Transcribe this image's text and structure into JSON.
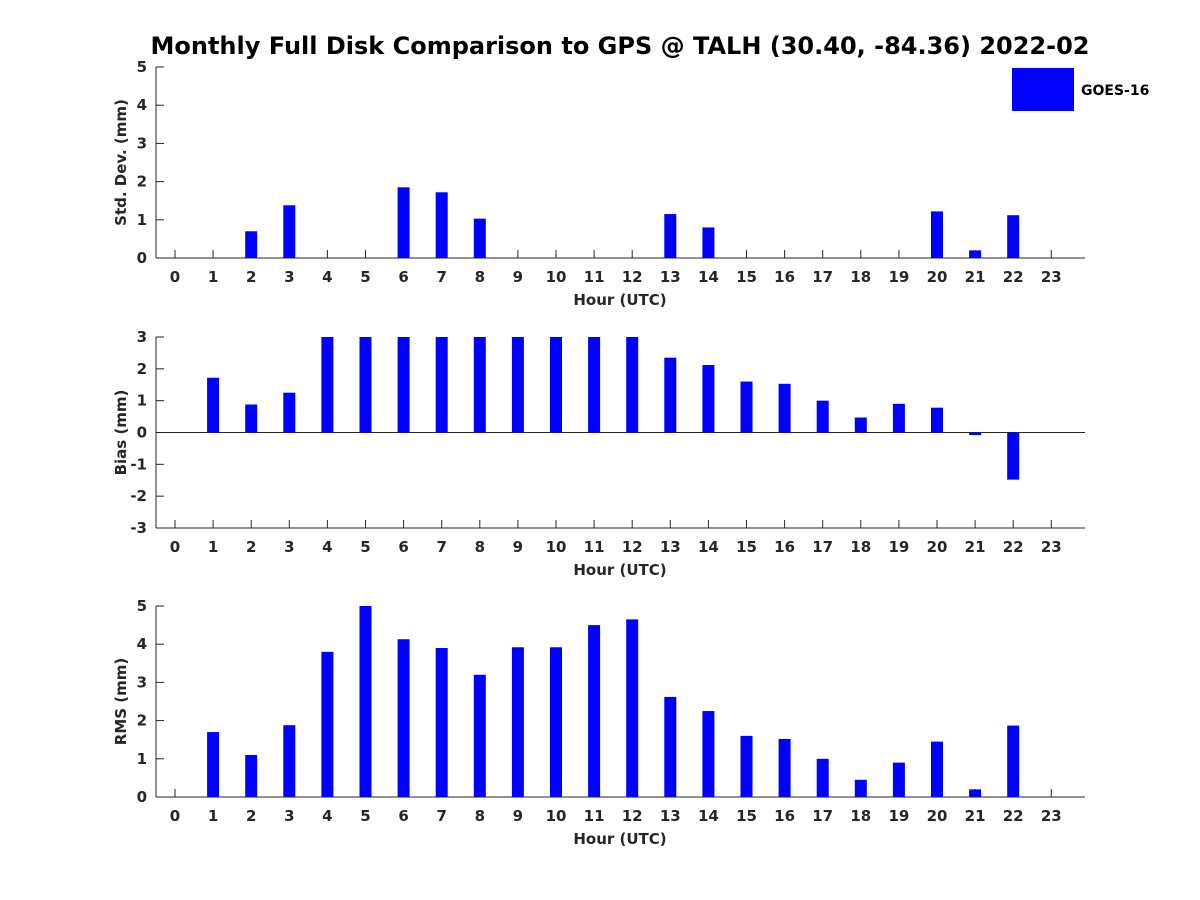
{
  "chart_data": {
    "title": "Monthly Full Disk Comparison to GPS @ TALH (30.40, -84.36) 2022-02",
    "legend": {
      "label": "GOES-16",
      "color": "#0000ff",
      "placement": "top-right"
    },
    "bar_color": "#0000ff",
    "panels": [
      {
        "type": "bar",
        "ylabel": "Std. Dev. (mm)",
        "xlabel": "Hour (UTC)",
        "ylim": [
          0,
          5
        ],
        "yticks": [
          "0",
          "1",
          "2",
          "3",
          "4",
          "5"
        ],
        "categories": [
          "0",
          "1",
          "2",
          "3",
          "4",
          "5",
          "6",
          "7",
          "8",
          "9",
          "10",
          "11",
          "12",
          "13",
          "14",
          "15",
          "16",
          "17",
          "18",
          "19",
          "20",
          "21",
          "22",
          "23"
        ],
        "values": [
          null,
          null,
          0.7,
          1.38,
          null,
          null,
          1.85,
          1.72,
          1.03,
          null,
          null,
          null,
          null,
          1.15,
          0.8,
          null,
          null,
          null,
          null,
          null,
          1.22,
          0.2,
          1.12,
          null
        ]
      },
      {
        "type": "bar",
        "ylabel": "Bias (mm)",
        "xlabel": "Hour (UTC)",
        "ylim": [
          -3,
          3
        ],
        "yticks": [
          "-3",
          "-2",
          "-1",
          "0",
          "1",
          "2",
          "3"
        ],
        "zero_line": true,
        "categories": [
          "0",
          "1",
          "2",
          "3",
          "4",
          "5",
          "6",
          "7",
          "8",
          "9",
          "10",
          "11",
          "12",
          "13",
          "14",
          "15",
          "16",
          "17",
          "18",
          "19",
          "20",
          "21",
          "22",
          "23"
        ],
        "values": [
          null,
          1.72,
          0.88,
          1.25,
          3.0,
          3.0,
          3.0,
          3.0,
          3.0,
          3.0,
          3.0,
          3.0,
          3.0,
          2.35,
          2.12,
          1.6,
          1.53,
          1.0,
          0.47,
          0.9,
          0.78,
          -0.08,
          -1.48,
          null
        ]
      },
      {
        "type": "bar",
        "ylabel": "RMS (mm)",
        "xlabel": "Hour (UTC)",
        "ylim": [
          0,
          5
        ],
        "yticks": [
          "0",
          "1",
          "2",
          "3",
          "4",
          "5"
        ],
        "categories": [
          "0",
          "1",
          "2",
          "3",
          "4",
          "5",
          "6",
          "7",
          "8",
          "9",
          "10",
          "11",
          "12",
          "13",
          "14",
          "15",
          "16",
          "17",
          "18",
          "19",
          "20",
          "21",
          "22",
          "23"
        ],
        "values": [
          null,
          1.7,
          1.1,
          1.88,
          3.8,
          5.0,
          4.13,
          3.9,
          3.2,
          3.92,
          3.92,
          4.5,
          4.65,
          2.62,
          2.25,
          1.6,
          1.52,
          1.0,
          0.45,
          0.9,
          1.45,
          0.2,
          1.87,
          null
        ]
      }
    ]
  }
}
